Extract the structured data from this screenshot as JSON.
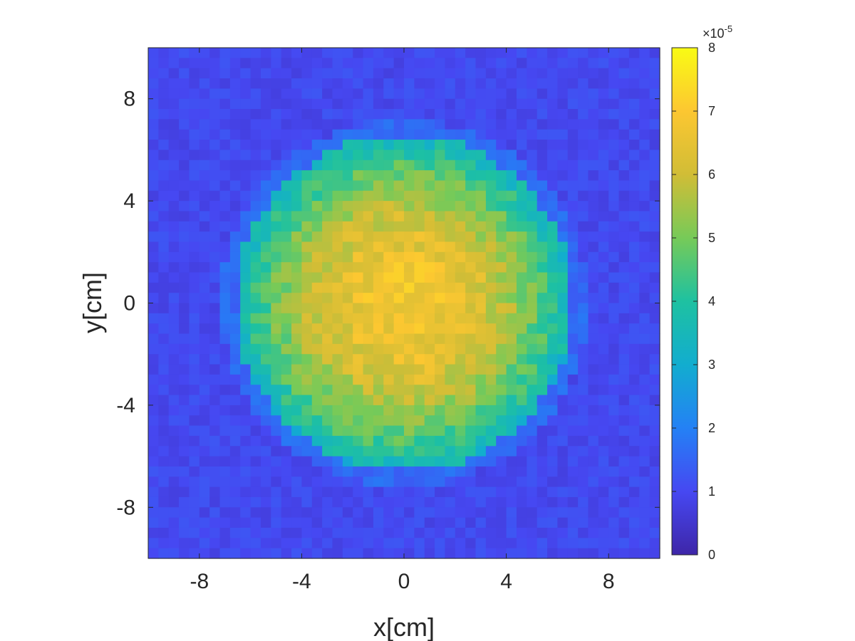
{
  "chart_data": {
    "type": "heatmap",
    "title": "",
    "xlabel": "x[cm]",
    "ylabel": "y[cm]",
    "xlim": [
      -10,
      10
    ],
    "ylim": [
      -10,
      10
    ],
    "x_ticks": [
      -8,
      -4,
      0,
      4,
      8
    ],
    "y_ticks": [
      -8,
      -4,
      0,
      4,
      8
    ],
    "x_tick_labels": [
      "-8",
      "-4",
      "0",
      "4",
      "8"
    ],
    "y_tick_labels": [
      "-8",
      "-4",
      "0",
      "4",
      "8"
    ],
    "grid": {
      "nx": 50,
      "ny": 50,
      "cell_size_cm": 0.4
    },
    "field": {
      "shape": "circular disk",
      "center": [
        0.0,
        0.0
      ],
      "radius_cm": 6.6,
      "peak_value": 6.8e-05,
      "edge_value": 3.3e-05,
      "background_value": 1e-05,
      "peak_max_observed": 7.6e-05
    },
    "colorbar": {
      "min": 0,
      "max": 8e-05,
      "ticks": [
        0,
        1,
        2,
        3,
        4,
        5,
        6,
        7,
        8
      ],
      "tick_labels": [
        "0",
        "1",
        "2",
        "3",
        "4",
        "5",
        "6",
        "7",
        "8"
      ],
      "exponent_label": "×10",
      "exponent_power": "-5",
      "colormap": "parula"
    },
    "grid_lines": false,
    "legend": "none"
  }
}
